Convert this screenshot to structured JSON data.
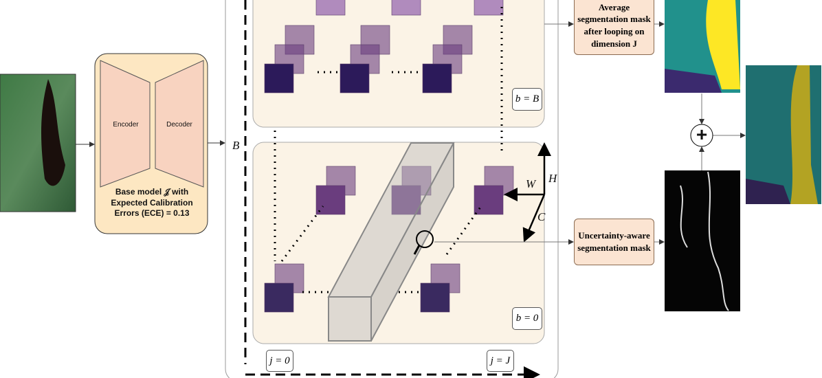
{
  "base_model": {
    "encoder": "Encoder",
    "decoder": "Decoder",
    "caption": "Base model 𝒥 with Expected Calibration Errors (ECE) = 0.13"
  },
  "batch_axis": "B",
  "panels": [
    {
      "label": "b = B"
    },
    {
      "label": "b = 0"
    }
  ],
  "loop_labels": [
    "j = 0",
    "j = J"
  ],
  "axes": {
    "width": "W",
    "height": "H",
    "channels": "C"
  },
  "outputs": [
    {
      "label": "Average segmentation mask after looping on dimension J"
    },
    {
      "label": "Uncertainty-aware segmentation mask"
    }
  ],
  "combine": "+"
}
